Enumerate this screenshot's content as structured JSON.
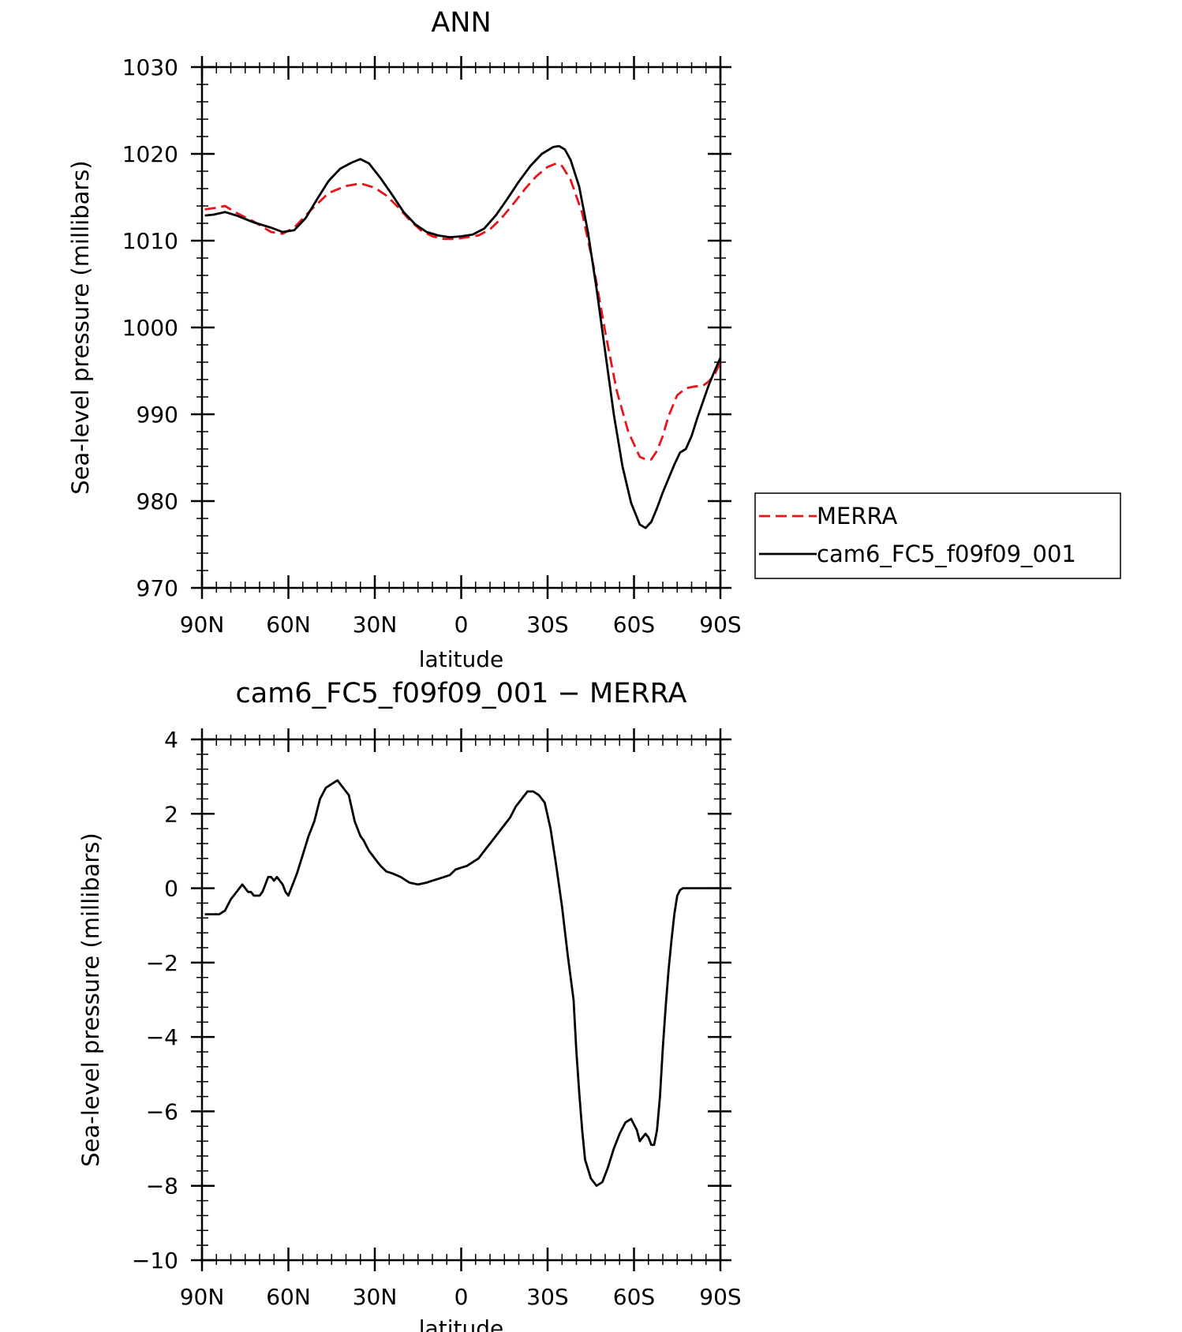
{
  "chart_data": [
    {
      "type": "line",
      "title": "ANN",
      "xlabel": "latitude",
      "ylabel": "Sea-level pressure (millibars)",
      "xlim": [
        90,
        -90
      ],
      "ylim": [
        970,
        1030
      ],
      "x_ticks": [
        {
          "value": 90,
          "label": "90N"
        },
        {
          "value": 60,
          "label": "60N"
        },
        {
          "value": 30,
          "label": "30N"
        },
        {
          "value": 0,
          "label": "0"
        },
        {
          "value": -30,
          "label": "30S"
        },
        {
          "value": -60,
          "label": "60S"
        },
        {
          "value": -90,
          "label": "90S"
        }
      ],
      "y_ticks": [
        {
          "value": 970,
          "label": "970"
        },
        {
          "value": 980,
          "label": "980"
        },
        {
          "value": 990,
          "label": "990"
        },
        {
          "value": 1000,
          "label": "1000"
        },
        {
          "value": 1010,
          "label": "1010"
        },
        {
          "value": 1020,
          "label": "1020"
        },
        {
          "value": 1030,
          "label": "1030"
        }
      ],
      "legend_position": "right",
      "series": [
        {
          "name": "MERRA",
          "color": "#e8141a",
          "style": "dashed",
          "x": [
            89,
            85,
            82,
            78,
            72,
            66,
            62,
            58,
            52,
            46,
            40,
            35,
            30,
            26,
            22,
            18,
            14,
            10,
            6,
            2,
            -2,
            -6,
            -10,
            -14,
            -18,
            -22,
            -26,
            -30,
            -33,
            -35,
            -38,
            -42,
            -46,
            -50,
            -54,
            -58,
            -62,
            -64,
            -66,
            -68,
            -70,
            -72,
            -75,
            -78,
            -81,
            -84,
            -86,
            -88,
            -90
          ],
          "y": [
            1013.6,
            1013.8,
            1014.0,
            1013.2,
            1012.2,
            1011.0,
            1010.8,
            1011.5,
            1013.6,
            1015.5,
            1016.3,
            1016.6,
            1016.1,
            1015.2,
            1013.9,
            1012.4,
            1011.2,
            1010.5,
            1010.2,
            1010.2,
            1010.4,
            1010.6,
            1011.3,
            1012.6,
            1014.2,
            1015.9,
            1017.4,
            1018.5,
            1018.9,
            1018.6,
            1017.0,
            1013.2,
            1007.0,
            999.5,
            992.7,
            988.0,
            985.1,
            984.8,
            984.8,
            985.8,
            987.5,
            989.8,
            992.2,
            993.0,
            993.2,
            993.3,
            993.8,
            994.6,
            996.0
          ]
        },
        {
          "name": "cam6_FC5_f09f09_001",
          "color": "#000000",
          "style": "solid",
          "x": [
            89,
            86,
            82,
            78,
            72,
            66,
            62,
            58,
            54,
            50,
            46,
            42,
            38,
            35,
            32,
            28,
            24,
            20,
            16,
            12,
            8,
            4,
            0,
            -4,
            -8,
            -12,
            -16,
            -20,
            -24,
            -28,
            -32,
            -34,
            -36,
            -38,
            -41,
            -44,
            -47,
            -50,
            -53,
            -56,
            -59,
            -62,
            -64,
            -66,
            -68,
            -70,
            -72,
            -74,
            -76,
            -78,
            -80,
            -82,
            -84,
            -86,
            -88,
            -90
          ],
          "y": [
            1012.9,
            1013.0,
            1013.3,
            1012.9,
            1012.1,
            1011.5,
            1011.0,
            1011.2,
            1012.6,
            1014.8,
            1016.9,
            1018.3,
            1019.0,
            1019.4,
            1018.9,
            1017.2,
            1015.3,
            1013.3,
            1011.9,
            1011.0,
            1010.6,
            1010.4,
            1010.5,
            1010.7,
            1011.4,
            1012.9,
            1014.8,
            1016.8,
            1018.6,
            1020.0,
            1020.8,
            1020.9,
            1020.5,
            1019.3,
            1016.2,
            1011.0,
            1004.5,
            997.2,
            990.0,
            984.0,
            979.8,
            977.3,
            976.9,
            977.6,
            979.2,
            981.0,
            982.6,
            984.2,
            985.6,
            986.0,
            987.5,
            989.6,
            991.5,
            993.4,
            995.0,
            996.5
          ]
        }
      ]
    },
    {
      "type": "line",
      "title": "cam6_FC5_f09f09_001 − MERRA",
      "xlabel": "latitude",
      "ylabel": "Sea-level pressure (millibars)",
      "xlim": [
        90,
        -90
      ],
      "ylim": [
        -10,
        4
      ],
      "x_ticks": [
        {
          "value": 90,
          "label": "90N"
        },
        {
          "value": 60,
          "label": "60N"
        },
        {
          "value": 30,
          "label": "30N"
        },
        {
          "value": 0,
          "label": "0"
        },
        {
          "value": -30,
          "label": "30S"
        },
        {
          "value": -60,
          "label": "60S"
        },
        {
          "value": -90,
          "label": "90S"
        }
      ],
      "y_ticks": [
        {
          "value": -10,
          "label": "−10"
        },
        {
          "value": -8,
          "label": "−8"
        },
        {
          "value": -6,
          "label": "−6"
        },
        {
          "value": -4,
          "label": "−4"
        },
        {
          "value": -2,
          "label": "−2"
        },
        {
          "value": 0,
          "label": "0"
        },
        {
          "value": 2,
          "label": "2"
        },
        {
          "value": 4,
          "label": "4"
        }
      ],
      "series": [
        {
          "name": "",
          "color": "#000000",
          "style": "solid",
          "x": [
            89,
            87,
            84,
            82,
            80,
            78,
            77,
            76,
            75,
            74,
            73,
            72,
            71,
            70,
            69,
            68,
            67,
            66,
            65,
            64,
            63,
            62,
            61,
            60,
            59,
            58,
            57,
            55,
            53,
            51,
            49,
            47,
            45,
            43,
            41,
            39,
            37,
            36,
            35,
            34,
            32,
            31,
            29,
            28,
            26,
            24,
            21,
            18,
            15,
            12,
            10,
            8,
            6,
            4,
            2,
            0,
            -2,
            -4,
            -6,
            -8,
            -10,
            -12,
            -13,
            -14,
            -15,
            -17,
            -19,
            -21,
            -23,
            -25,
            -27,
            -29,
            -31,
            -33,
            -35,
            -37,
            -39,
            -40,
            -41,
            -42,
            -43,
            -45,
            -47,
            -49,
            -51,
            -53,
            -55,
            -57,
            -59,
            -61,
            -62,
            -63,
            -64,
            -65,
            -66,
            -67,
            -68,
            -69,
            -70,
            -71,
            -72,
            -73,
            -74,
            -75,
            -76,
            -77,
            -78,
            -79,
            -80,
            -81,
            -82,
            -83,
            -84,
            -85,
            -86,
            -87,
            -88,
            -89,
            -90
          ],
          "y": [
            -0.7,
            -0.7,
            -0.7,
            -0.6,
            -0.3,
            -0.1,
            0.0,
            0.1,
            0.0,
            -0.1,
            -0.1,
            -0.2,
            -0.2,
            -0.2,
            -0.1,
            0.1,
            0.3,
            0.3,
            0.2,
            0.3,
            0.2,
            0.1,
            -0.1,
            -0.2,
            0.0,
            0.2,
            0.4,
            0.9,
            1.4,
            1.8,
            2.4,
            2.7,
            2.8,
            2.9,
            2.7,
            2.5,
            1.8,
            1.6,
            1.4,
            1.3,
            1.0,
            0.9,
            0.7,
            0.6,
            0.45,
            0.4,
            0.3,
            0.15,
            0.1,
            0.15,
            0.2,
            0.25,
            0.3,
            0.35,
            0.5,
            0.55,
            0.6,
            0.7,
            0.8,
            1.0,
            1.2,
            1.4,
            1.5,
            1.6,
            1.7,
            1.9,
            2.2,
            2.4,
            2.6,
            2.6,
            2.5,
            2.3,
            1.6,
            0.6,
            -0.5,
            -1.8,
            -3.0,
            -4.4,
            -5.5,
            -6.5,
            -7.3,
            -7.8,
            -8.0,
            -7.9,
            -7.5,
            -7.0,
            -6.6,
            -6.3,
            -6.2,
            -6.5,
            -6.8,
            -6.7,
            -6.6,
            -6.7,
            -6.9,
            -6.9,
            -6.5,
            -5.6,
            -4.3,
            -3.2,
            -2.2,
            -1.4,
            -0.7,
            -0.2,
            -0.05,
            0.0,
            0.0,
            0.0,
            0.0,
            0.0,
            0.0,
            0.0,
            0.0,
            0.0,
            0.0,
            0.0,
            0.0,
            0.0,
            0.0
          ]
        }
      ]
    }
  ]
}
